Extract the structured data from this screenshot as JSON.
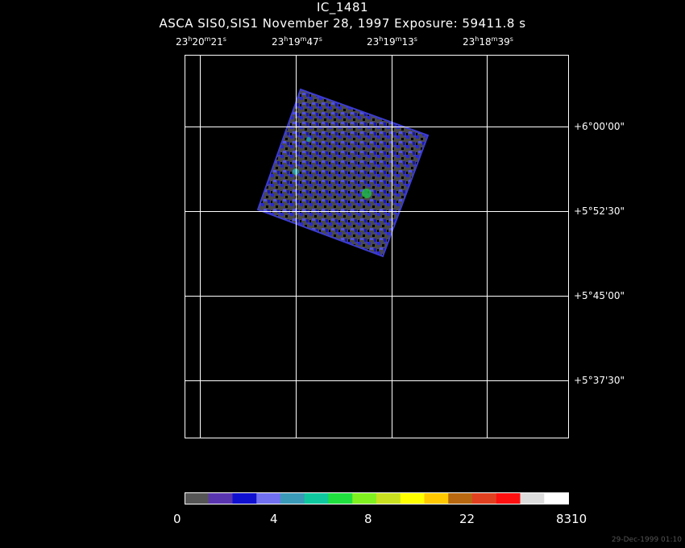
{
  "title": "IC_1481",
  "subtitle": "ASCA SIS0,SIS1 November 28, 1997 Exposure: 59411.8 s",
  "ra_labels": [
    {
      "h": "23",
      "m": "20",
      "s": "21"
    },
    {
      "h": "23",
      "m": "19",
      "s": "47"
    },
    {
      "h": "23",
      "m": "19",
      "s": "13"
    },
    {
      "h": "23",
      "m": "18",
      "s": "39"
    }
  ],
  "dec_labels": [
    "+6°00'00\"",
    "+5°52'30\"",
    "+5°45'00\"",
    "+5°37'30\""
  ],
  "colorbar": {
    "colors": [
      "#555555",
      "#5a35b0",
      "#1010d0",
      "#7070f0",
      "#3a9ab8",
      "#10c8a0",
      "#20e040",
      "#80f020",
      "#c8e020",
      "#ffff00",
      "#ffc800",
      "#b86810",
      "#e04020",
      "#ff1010",
      "#dcdcdc",
      "#ffffff"
    ],
    "labels": [
      "0",
      "4",
      "8",
      "22",
      "8310"
    ]
  },
  "timestamp": "29-Dec-1999 01:10"
}
